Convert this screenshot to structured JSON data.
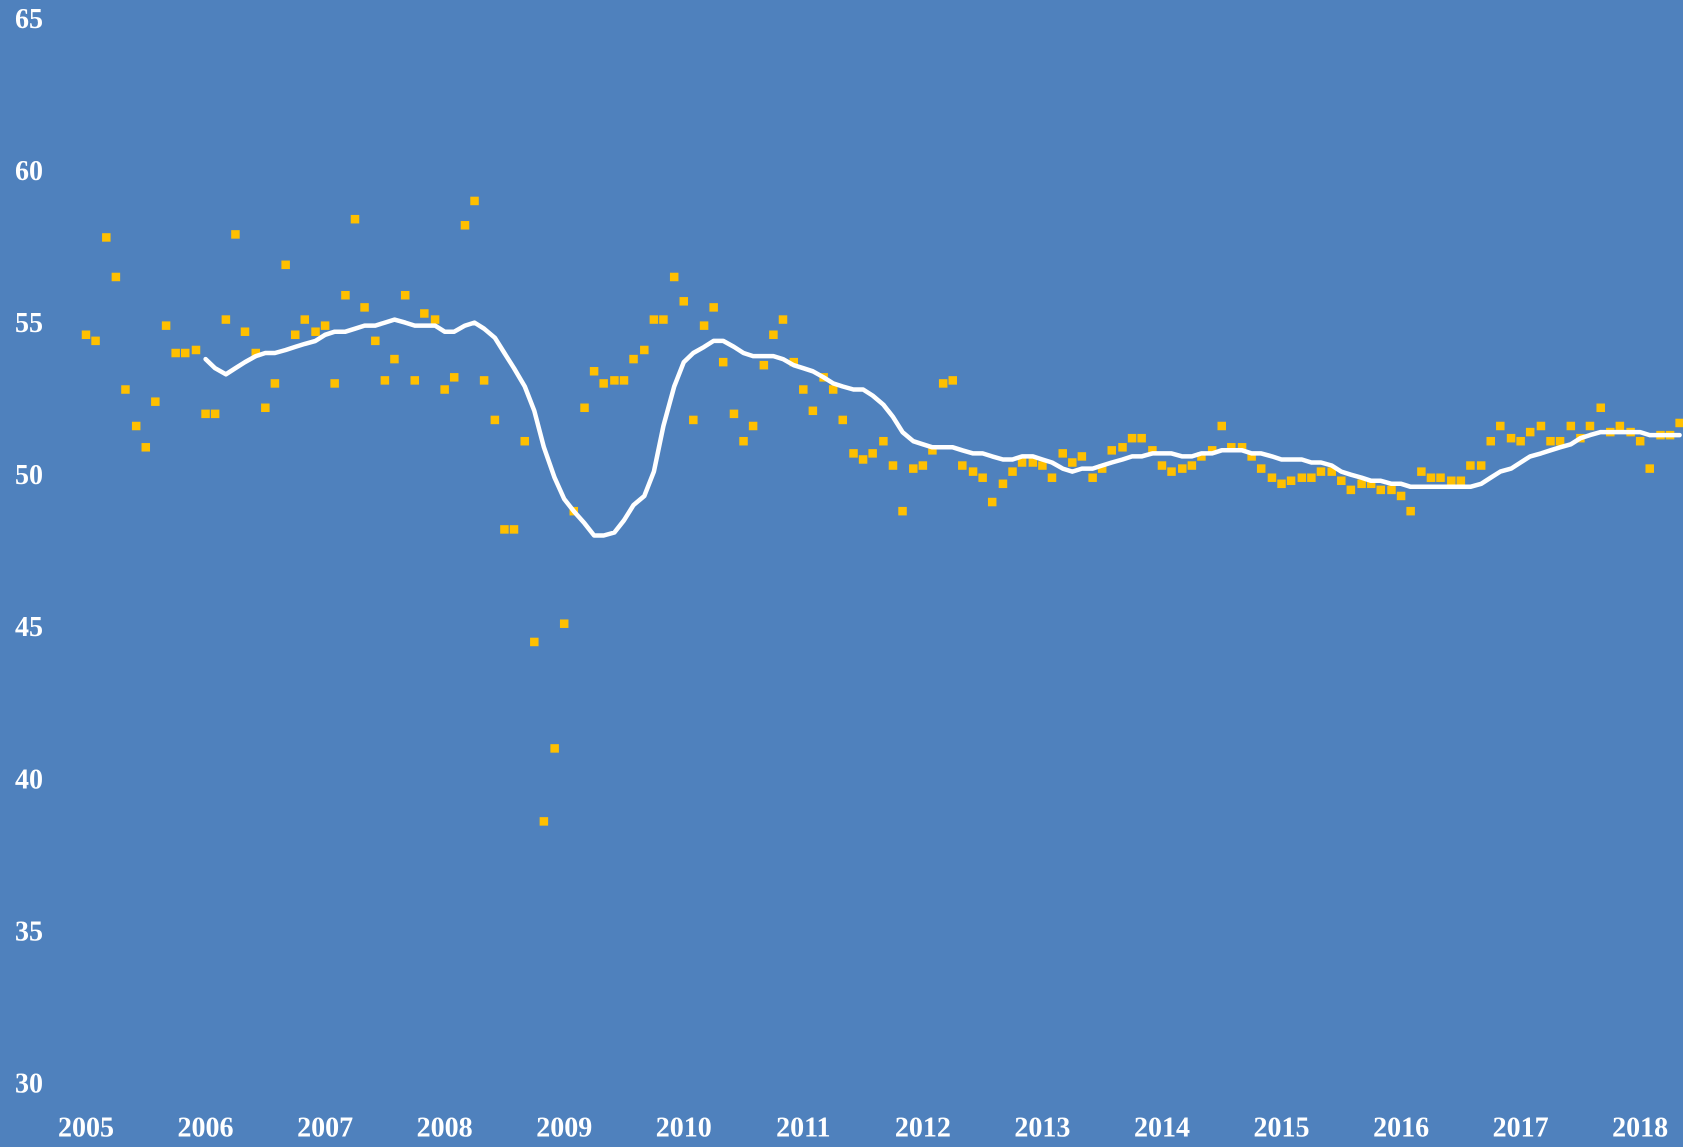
{
  "chart_data": {
    "type": "scatter",
    "x": [
      2005,
      2005.08,
      2005.17,
      2005.25,
      2005.33,
      2005.42,
      2005.5,
      2005.58,
      2005.67,
      2005.75,
      2005.83,
      2005.92,
      2006,
      2006.08,
      2006.17,
      2006.25,
      2006.33,
      2006.42,
      2006.5,
      2006.58,
      2006.67,
      2006.75,
      2006.83,
      2006.92,
      2007,
      2007.08,
      2007.17,
      2007.25,
      2007.33,
      2007.42,
      2007.5,
      2007.58,
      2007.67,
      2007.75,
      2007.83,
      2007.92,
      2008,
      2008.08,
      2008.17,
      2008.25,
      2008.33,
      2008.42,
      2008.5,
      2008.58,
      2008.67,
      2008.75,
      2008.83,
      2008.92,
      2009,
      2009.08,
      2009.17,
      2009.25,
      2009.33,
      2009.42,
      2009.5,
      2009.58,
      2009.67,
      2009.75,
      2009.83,
      2009.92,
      2010,
      2010.08,
      2010.17,
      2010.25,
      2010.33,
      2010.42,
      2010.5,
      2010.58,
      2010.67,
      2010.75,
      2010.83,
      2010.92,
      2011,
      2011.08,
      2011.17,
      2011.25,
      2011.33,
      2011.42,
      2011.5,
      2011.58,
      2011.67,
      2011.75,
      2011.83,
      2011.92,
      2012,
      2012.08,
      2012.17,
      2012.25,
      2012.33,
      2012.42,
      2012.5,
      2012.58,
      2012.67,
      2012.75,
      2012.83,
      2012.92,
      2013,
      2013.08,
      2013.17,
      2013.25,
      2013.33,
      2013.42,
      2013.5,
      2013.58,
      2013.67,
      2013.75,
      2013.83,
      2013.92,
      2014,
      2014.08,
      2014.17,
      2014.25,
      2014.33,
      2014.42,
      2014.5,
      2014.58,
      2014.67,
      2014.75,
      2014.83,
      2014.92,
      2015,
      2015.08,
      2015.17,
      2015.25,
      2015.33,
      2015.42,
      2015.5,
      2015.58,
      2015.67,
      2015.75,
      2015.83,
      2015.92,
      2016,
      2016.08,
      2016.17,
      2016.25,
      2016.33,
      2016.42,
      2016.5,
      2016.58,
      2016.67,
      2016.75,
      2016.83,
      2016.92,
      2017,
      2017.08,
      2017.17,
      2017.25,
      2017.33,
      2017.42,
      2017.5,
      2017.58,
      2017.67,
      2017.75,
      2017.83,
      2017.92,
      2018,
      2018.08,
      2018.17,
      2018.25,
      2018.33
    ],
    "series": [
      {
        "type": "scatter",
        "color": "#ffc000",
        "values": [
          54.7,
          54.5,
          57.9,
          56.6,
          52.9,
          51.7,
          51.0,
          52.5,
          55.0,
          54.1,
          54.1,
          54.2,
          52.1,
          52.1,
          55.2,
          58.0,
          54.8,
          54.1,
          52.3,
          53.1,
          57.0,
          54.7,
          55.2,
          54.8,
          55.0,
          53.1,
          56.0,
          58.5,
          55.6,
          54.5,
          53.2,
          53.9,
          56.0,
          53.2,
          55.4,
          55.2,
          52.9,
          53.3,
          58.3,
          59.1,
          53.2,
          51.9,
          48.3,
          48.3,
          51.2,
          44.6,
          38.7,
          41.1,
          45.2,
          48.9,
          52.3,
          53.5,
          53.1,
          53.2,
          53.2,
          53.9,
          54.2,
          55.2,
          55.2,
          56.6,
          55.8,
          51.9,
          55.0,
          55.6,
          53.8,
          52.1,
          51.2,
          51.7,
          53.7,
          54.7,
          55.2,
          53.8,
          52.9,
          52.2,
          53.3,
          52.9,
          51.9,
          50.8,
          50.6,
          50.8,
          51.2,
          50.4,
          48.9,
          50.3,
          50.4,
          50.9,
          53.1,
          53.2,
          50.4,
          50.2,
          50.0,
          49.2,
          49.8,
          50.2,
          50.5,
          50.5,
          50.4,
          50.0,
          50.8,
          50.5,
          50.7,
          50.0,
          50.3,
          50.9,
          51.0,
          51.3,
          51.3,
          50.9,
          50.4,
          50.2,
          50.3,
          50.4,
          50.7,
          50.9,
          51.7,
          51.0,
          51.0,
          50.7,
          50.3,
          50.0,
          49.8,
          49.9,
          50.0,
          50.0,
          50.2,
          50.2,
          49.9,
          49.6,
          49.8,
          49.8,
          49.6,
          49.6,
          49.4,
          48.9,
          50.2,
          50.0,
          50.0,
          49.9,
          49.9,
          50.4,
          50.4,
          51.2,
          51.7,
          51.3,
          51.2,
          51.5,
          51.7,
          51.2,
          51.2,
          51.7,
          51.3,
          51.7,
          52.3,
          51.5,
          51.7,
          51.5,
          51.2,
          50.3,
          51.4,
          51.4,
          51.8
        ]
      },
      {
        "type": "line",
        "color": "#ffffff",
        "values": [
          null,
          null,
          null,
          null,
          null,
          null,
          null,
          null,
          null,
          null,
          null,
          null,
          53.9,
          53.6,
          53.4,
          53.6,
          53.8,
          54.0,
          54.1,
          54.1,
          54.2,
          54.3,
          54.4,
          54.5,
          54.7,
          54.8,
          54.8,
          54.9,
          55.0,
          55.0,
          55.1,
          55.2,
          55.1,
          55.0,
          55.0,
          55.0,
          54.8,
          54.8,
          55.0,
          55.1,
          54.9,
          54.6,
          54.1,
          53.6,
          53.0,
          52.2,
          51.0,
          50.0,
          49.3,
          48.9,
          48.5,
          48.1,
          48.1,
          48.2,
          48.6,
          49.1,
          49.4,
          50.2,
          51.7,
          53.0,
          53.8,
          54.1,
          54.3,
          54.5,
          54.5,
          54.3,
          54.1,
          54.0,
          54.0,
          54.0,
          53.9,
          53.7,
          53.6,
          53.5,
          53.3,
          53.1,
          53.0,
          52.9,
          52.9,
          52.7,
          52.4,
          52.0,
          51.5,
          51.2,
          51.1,
          51.0,
          51.0,
          51.0,
          50.9,
          50.8,
          50.8,
          50.7,
          50.6,
          50.6,
          50.7,
          50.7,
          50.6,
          50.5,
          50.3,
          50.2,
          50.3,
          50.3,
          50.4,
          50.5,
          50.6,
          50.7,
          50.7,
          50.8,
          50.8,
          50.8,
          50.7,
          50.7,
          50.8,
          50.8,
          50.9,
          50.9,
          50.9,
          50.8,
          50.8,
          50.7,
          50.6,
          50.6,
          50.6,
          50.5,
          50.5,
          50.4,
          50.2,
          50.1,
          50.0,
          49.9,
          49.9,
          49.8,
          49.8,
          49.7,
          49.7,
          49.7,
          49.7,
          49.7,
          49.7,
          49.7,
          49.8,
          50.0,
          50.2,
          50.3,
          50.5,
          50.7,
          50.8,
          50.9,
          51.0,
          51.1,
          51.3,
          51.4,
          51.5,
          51.5,
          51.5,
          51.5,
          51.5,
          51.4,
          51.4,
          51.4,
          51.4
        ]
      }
    ],
    "xlim": [
      2005,
      2018.4
    ],
    "xticks": [
      2005,
      2006,
      2007,
      2008,
      2009,
      2010,
      2011,
      2012,
      2013,
      2014,
      2015,
      2016,
      2017,
      2018
    ],
    "ylim": [
      30,
      65
    ],
    "yticks": [
      30,
      35,
      40,
      45,
      50,
      55,
      60,
      65
    ],
    "grid": false
  }
}
